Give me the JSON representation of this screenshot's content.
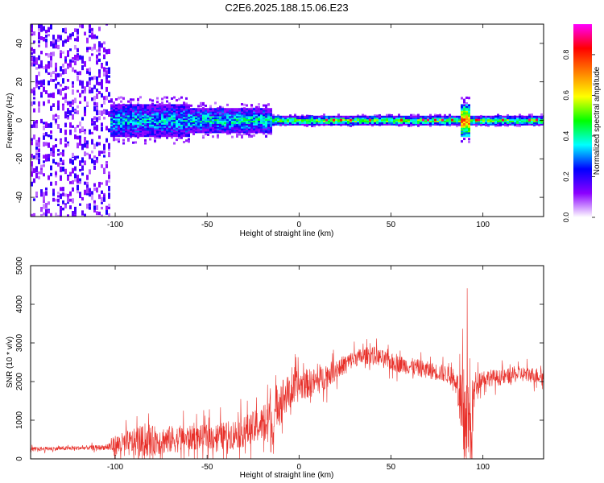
{
  "title": "C2E6.2025.188.15.06.E23",
  "chart_data": [
    {
      "type": "heatmap",
      "xlabel": "Height of straight line (km)",
      "ylabel": "Frequency (Hz)",
      "xlim": [
        -146,
        133
      ],
      "ylim": [
        -50,
        50
      ],
      "xticks": [
        -100,
        -50,
        0,
        50,
        100
      ],
      "yticks": [
        -40,
        -20,
        0,
        20,
        40
      ],
      "colorbar": {
        "label": "Normalized spectral amplitude",
        "range": [
          0,
          0.95
        ],
        "ticks": [
          "0.0",
          "0.2",
          "0.4",
          "0.6",
          "0.8"
        ],
        "colormap": [
          "#ffffff",
          "#8b00ff",
          "#0000ff",
          "#00ffff",
          "#00ff00",
          "#ffff00",
          "#ff8000",
          "#ff0000",
          "#ff00ff"
        ]
      },
      "band": {
        "centre_hz": 0,
        "segments": [
          {
            "x0": -146,
            "x1": -103,
            "halfwidth_hz": 50,
            "level": 0.1
          },
          {
            "x0": -103,
            "x1": -60,
            "halfwidth_hz": 8,
            "level": 0.35
          },
          {
            "x0": -60,
            "x1": -15,
            "halfwidth_hz": 6,
            "level": 0.4
          },
          {
            "x0": -15,
            "x1": 133,
            "halfwidth_hz": 2,
            "level": 0.55
          }
        ],
        "spike": {
          "x": 90,
          "halfwidth_hz": 8,
          "level": 0.8
        }
      }
    },
    {
      "type": "line",
      "xlabel": "Height of straight line (km)",
      "ylabel": "SNR (10 * v/v)",
      "xlim": [
        -146,
        133
      ],
      "ylim": [
        0,
        5000
      ],
      "xticks": [
        -100,
        -50,
        0,
        50,
        100
      ],
      "yticks": [
        0,
        1000,
        2000,
        3000,
        4000,
        5000
      ],
      "series_color": "#e8302a",
      "envelope": {
        "x": [
          -146,
          -120,
          -105,
          -100,
          -85,
          -70,
          -55,
          -40,
          -30,
          -20,
          -16,
          -14,
          -12,
          -5,
          0,
          10,
          20,
          30,
          40,
          50,
          60,
          70,
          80,
          86,
          89,
          91,
          93,
          96,
          100,
          110,
          120,
          133
        ],
        "base": [
          250,
          280,
          300,
          350,
          450,
          500,
          550,
          600,
          700,
          900,
          1100,
          700,
          1500,
          1700,
          1900,
          2000,
          2300,
          2600,
          2700,
          2500,
          2400,
          2300,
          2200,
          2000,
          600,
          1500,
          600,
          2000,
          2100,
          2100,
          2200,
          2150
        ],
        "amp": [
          120,
          120,
          150,
          600,
          900,
          800,
          700,
          800,
          900,
          1000,
          2500,
          600,
          1400,
          1000,
          900,
          800,
          600,
          500,
          500,
          500,
          500,
          500,
          500,
          500,
          3500,
          3500,
          3000,
          600,
          500,
          450,
          450,
          450
        ]
      }
    }
  ]
}
